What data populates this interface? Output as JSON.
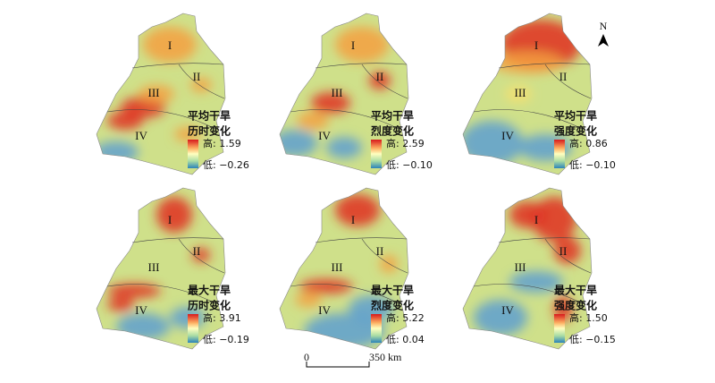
{
  "panels": [
    {
      "title_lines": [
        "平均干旱",
        "历时变化"
      ],
      "high_label": "高: 1.59",
      "low_label": "低: −0.26",
      "regions": [
        "I",
        "II",
        "III",
        "IV"
      ]
    },
    {
      "title_lines": [
        "平均干旱",
        "烈度变化"
      ],
      "high_label": "高: 2.59",
      "low_label": "低: −0.10",
      "regions": [
        "I",
        "II",
        "III",
        "IV"
      ]
    },
    {
      "title_lines": [
        "平均干旱",
        "强度变化"
      ],
      "high_label": "高: 0.86",
      "low_label": "低: −0.10",
      "regions": [
        "I",
        "II",
        "III",
        "IV"
      ]
    },
    {
      "title_lines": [
        "最大干旱",
        "历时变化"
      ],
      "high_label": "高: 3.91",
      "low_label": "低: −0.19",
      "regions": [
        "I",
        "II",
        "III",
        "IV"
      ]
    },
    {
      "title_lines": [
        "最大干旱",
        "烈度变化"
      ],
      "high_label": "高: 5.22",
      "low_label": "低: 0.04",
      "regions": [
        "I",
        "II",
        "III",
        "IV"
      ]
    },
    {
      "title_lines": [
        "最大干旱",
        "强度变化"
      ],
      "high_label": "高: 1.50",
      "low_label": "低: −0.15",
      "regions": [
        "I",
        "II",
        "III",
        "IV"
      ]
    }
  ],
  "north_label": "N",
  "scale_bar": {
    "start_label": "0",
    "end_label": "350 km"
  }
}
